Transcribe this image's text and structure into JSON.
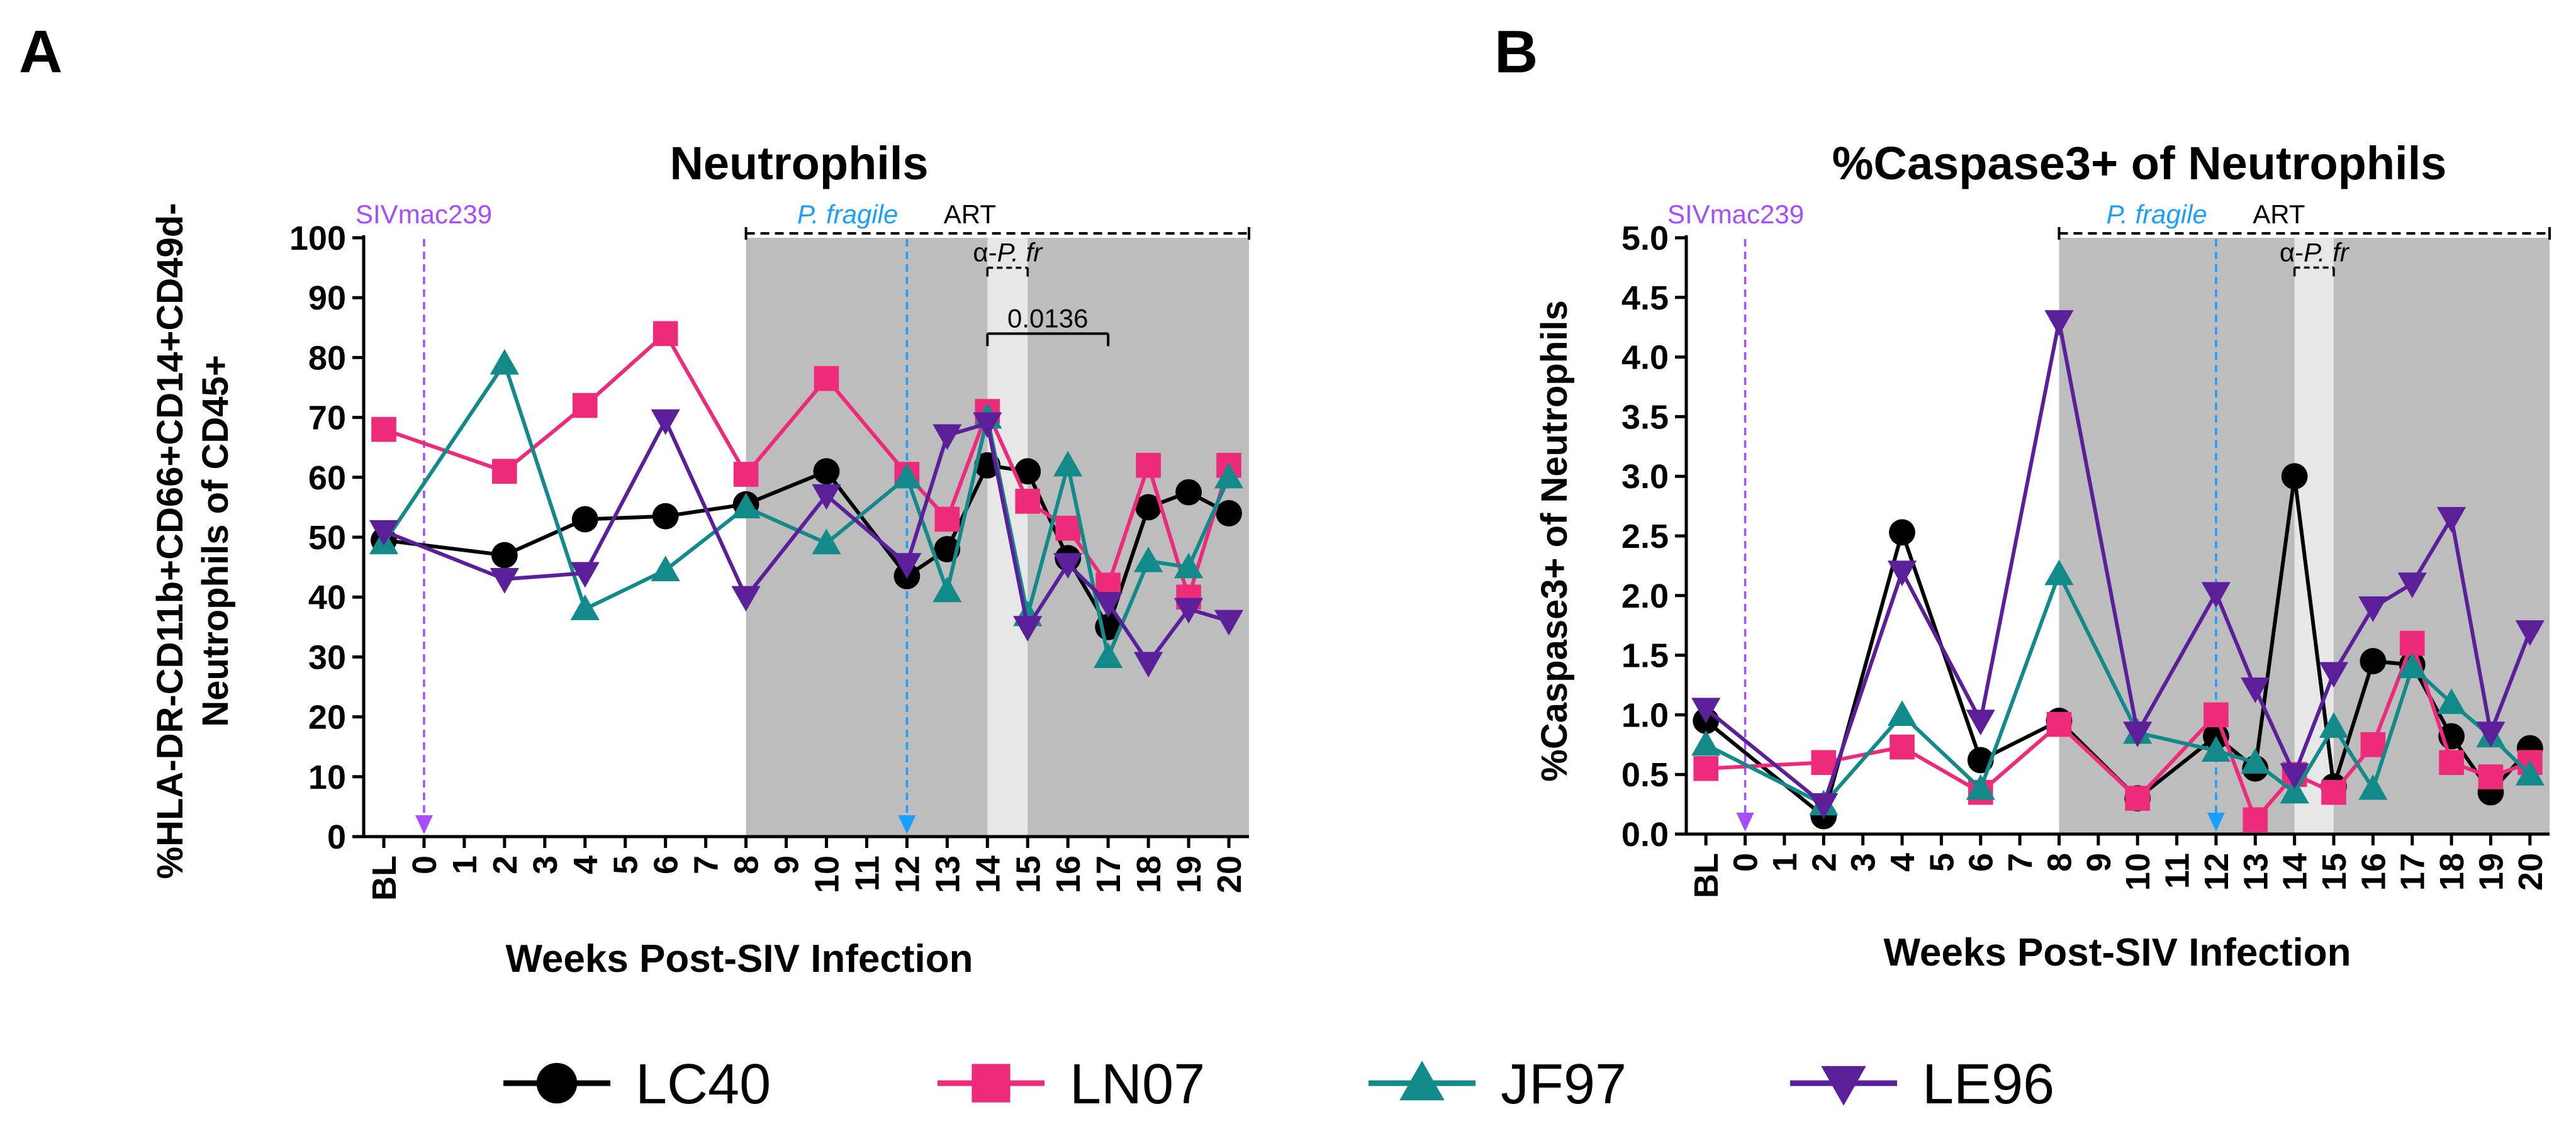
{
  "panel_labels": [
    "A",
    "B"
  ],
  "legend": [
    {
      "name": "LC40",
      "color": "#000000",
      "marker": "circle"
    },
    {
      "name": "LN07",
      "color": "#ee2a7b",
      "marker": "square"
    },
    {
      "name": "JF97",
      "color": "#128a8a",
      "marker": "triangle-up"
    },
    {
      "name": "LE96",
      "color": "#5b1f9a",
      "marker": "triangle-down"
    }
  ],
  "annotation_colors": {
    "siv": "#a64dff",
    "pfragile": "#1a9fff",
    "shade": "#bdbdbd",
    "light_shade": "#e7e7e7"
  },
  "chart_data": [
    {
      "type": "line",
      "panel": "A",
      "title": "Neutrophils",
      "xlabel": "Weeks Post-SIV Infection",
      "ylabel_lines": [
        "%HLA-DR-CD11b+CD66+CD14+CD49d-",
        "Neutrophils of CD45+"
      ],
      "categories": [
        "BL",
        "0",
        "1",
        "2",
        "3",
        "4",
        "5",
        "6",
        "7",
        "8",
        "9",
        "10",
        "11",
        "12",
        "13",
        "14",
        "15",
        "16",
        "17",
        "18",
        "19",
        "20"
      ],
      "ylim": [
        0,
        100
      ],
      "yticks": [
        0,
        10,
        20,
        30,
        40,
        50,
        60,
        70,
        80,
        90,
        100
      ],
      "ytick_labels": [
        "0",
        "10",
        "20",
        "30",
        "40",
        "50",
        "60",
        "70",
        "80",
        "90",
        "100"
      ],
      "shaded_region": {
        "from": "8",
        "to": "20"
      },
      "light_region": {
        "from": "14",
        "to": "15"
      },
      "annotations": {
        "siv_label": "SIVmac239",
        "siv_week": "0",
        "pfragile_label": "P. fragile",
        "pfragile_week": "12",
        "art_label": "ART",
        "art_from": "8",
        "art_to": "20",
        "apfr_prefix": "α-",
        "apfr_italic": "P. fr",
        "apfr_from": "14",
        "apfr_to": "15",
        "apfr_y": 95,
        "pvalue": "0.0136",
        "pvalue_from": "14",
        "pvalue_to": "17",
        "pvalue_y": 84
      },
      "series": [
        {
          "name": "LC40",
          "points": [
            [
              "BL",
              49.5
            ],
            [
              "2",
              47
            ],
            [
              "4",
              53
            ],
            [
              "6",
              53.5
            ],
            [
              "8",
              55.5
            ],
            [
              "10",
              61
            ],
            [
              "12",
              43.5
            ],
            [
              "13",
              48
            ],
            [
              "14",
              62
            ],
            [
              "15",
              61
            ],
            [
              "16",
              46.5
            ],
            [
              "17",
              35
            ],
            [
              "18",
              55
            ],
            [
              "19",
              57.5
            ],
            [
              "20",
              54
            ]
          ]
        },
        {
          "name": "LN07",
          "points": [
            [
              "BL",
              68
            ],
            [
              "2",
              61
            ],
            [
              "4",
              72
            ],
            [
              "6",
              84
            ],
            [
              "8",
              60.5
            ],
            [
              "10",
              76.5
            ],
            [
              "12",
              60.5
            ],
            [
              "13",
              53
            ],
            [
              "14",
              71
            ],
            [
              "15",
              56
            ],
            [
              "16",
              51.5
            ],
            [
              "17",
              42
            ],
            [
              "18",
              62
            ],
            [
              "19",
              40
            ],
            [
              "20",
              62
            ]
          ]
        },
        {
          "name": "JF97",
          "points": [
            [
              "BL",
              49
            ],
            [
              "2",
              79
            ],
            [
              "4",
              38
            ],
            [
              "6",
              44.5
            ],
            [
              "8",
              55
            ],
            [
              "10",
              49
            ],
            [
              "12",
              60
            ],
            [
              "13",
              41
            ],
            [
              "14",
              70
            ],
            [
              "15",
              37
            ],
            [
              "16",
              62
            ],
            [
              "17",
              30
            ],
            [
              "18",
              46
            ],
            [
              "19",
              45
            ],
            [
              "20",
              60
            ]
          ]
        },
        {
          "name": "LE96",
          "points": [
            [
              "BL",
              51
            ],
            [
              "2",
              43
            ],
            [
              "4",
              44
            ],
            [
              "6",
              69.5
            ],
            [
              "8",
              40
            ],
            [
              "10",
              57
            ],
            [
              "12",
              45.5
            ],
            [
              "13",
              67
            ],
            [
              "14",
              69
            ],
            [
              "15",
              35
            ],
            [
              "16",
              45.5
            ],
            [
              "17",
              39
            ],
            [
              "18",
              29
            ],
            [
              "19",
              38
            ],
            [
              "20",
              36
            ]
          ]
        }
      ]
    },
    {
      "type": "line",
      "panel": "B",
      "title": "%Caspase3+ of Neutrophils",
      "xlabel": "Weeks Post-SIV Infection",
      "ylabel_lines": [
        "%Caspase3+ of Neutrophils"
      ],
      "categories": [
        "BL",
        "0",
        "1",
        "2",
        "3",
        "4",
        "5",
        "6",
        "7",
        "8",
        "9",
        "10",
        "11",
        "12",
        "13",
        "14",
        "15",
        "16",
        "17",
        "18",
        "19",
        "20"
      ],
      "ylim": [
        0,
        5
      ],
      "yticks": [
        0,
        0.5,
        1,
        1.5,
        2,
        2.5,
        3,
        3.5,
        4,
        4.5,
        5
      ],
      "ytick_labels": [
        "0.0",
        "0.5",
        "1.0",
        "1.5",
        "2.0",
        "2.5",
        "3.0",
        "3.5",
        "4.0",
        "4.5",
        "5.0"
      ],
      "shaded_region": {
        "from": "8",
        "to": "20"
      },
      "light_region": {
        "from": "14",
        "to": "15"
      },
      "annotations": {
        "siv_label": "SIVmac239",
        "siv_week": "0",
        "pfragile_label": "P. fragile",
        "pfragile_week": "12",
        "art_label": "ART",
        "art_from": "8",
        "art_to": "20",
        "apfr_prefix": "α-",
        "apfr_italic": "P. fr",
        "apfr_from": "14",
        "apfr_to": "15",
        "apfr_y": 4.75
      },
      "series": [
        {
          "name": "LC40",
          "points": [
            [
              "BL",
              0.95
            ],
            [
              "2",
              0.15
            ],
            [
              "4",
              2.53
            ],
            [
              "6",
              0.62
            ],
            [
              "8",
              0.95
            ],
            [
              "10",
              0.3
            ],
            [
              "12",
              0.82
            ],
            [
              "13",
              0.55
            ],
            [
              "14",
              3.0
            ],
            [
              "15",
              0.4
            ],
            [
              "16",
              1.45
            ],
            [
              "17",
              1.42
            ],
            [
              "18",
              0.82
            ],
            [
              "19",
              0.35
            ],
            [
              "20",
              0.72
            ]
          ]
        },
        {
          "name": "LN07",
          "points": [
            [
              "BL",
              0.55
            ],
            [
              "2",
              0.6
            ],
            [
              "4",
              0.73
            ],
            [
              "6",
              0.35
            ],
            [
              "8",
              0.92
            ],
            [
              "10",
              0.3
            ],
            [
              "12",
              1.0
            ],
            [
              "13",
              0.12
            ],
            [
              "14",
              0.5
            ],
            [
              "15",
              0.35
            ],
            [
              "16",
              0.75
            ],
            [
              "17",
              1.6
            ],
            [
              "18",
              0.6
            ],
            [
              "19",
              0.48
            ],
            [
              "20",
              0.6
            ]
          ]
        },
        {
          "name": "JF97",
          "points": [
            [
              "BL",
              0.75
            ],
            [
              "2",
              0.25
            ],
            [
              "4",
              1.0
            ],
            [
              "6",
              0.38
            ],
            [
              "8",
              2.18
            ],
            [
              "10",
              0.85
            ],
            [
              "12",
              0.7
            ],
            [
              "13",
              0.6
            ],
            [
              "14",
              0.35
            ],
            [
              "15",
              0.9
            ],
            [
              "16",
              0.38
            ],
            [
              "17",
              1.4
            ],
            [
              "18",
              1.1
            ],
            [
              "19",
              0.82
            ],
            [
              "20",
              0.5
            ]
          ]
        },
        {
          "name": "LE96",
          "points": [
            [
              "BL",
              1.05
            ],
            [
              "2",
              0.25
            ],
            [
              "4",
              2.2
            ],
            [
              "6",
              0.95
            ],
            [
              "8",
              4.3
            ],
            [
              "10",
              0.85
            ],
            [
              "12",
              2.02
            ],
            [
              "13",
              1.22
            ],
            [
              "14",
              0.5
            ],
            [
              "15",
              1.35
            ],
            [
              "16",
              1.9
            ],
            [
              "17",
              2.1
            ],
            [
              "18",
              2.65
            ],
            [
              "19",
              0.85
            ],
            [
              "20",
              1.7
            ]
          ]
        }
      ]
    }
  ]
}
